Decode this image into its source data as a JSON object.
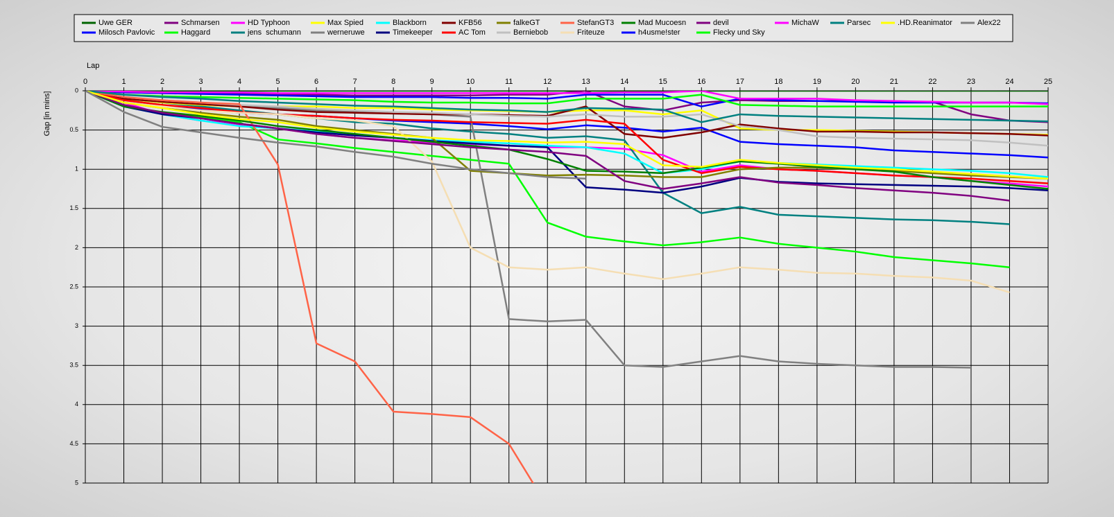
{
  "chart_data": {
    "type": "line",
    "x_label": "Lap",
    "y_label": "Gap [in mins]",
    "x": [
      0,
      1,
      2,
      3,
      4,
      5,
      6,
      7,
      8,
      9,
      10,
      11,
      12,
      13,
      14,
      15,
      16,
      17,
      18,
      19,
      20,
      21,
      22,
      23,
      24,
      25
    ],
    "xlim": [
      0,
      25
    ],
    "xticks": [
      0,
      1,
      2,
      3,
      4,
      5,
      6,
      7,
      8,
      9,
      10,
      11,
      12,
      13,
      14,
      15,
      16,
      17,
      18,
      19,
      20,
      21,
      22,
      23,
      24,
      25
    ],
    "ylim": [
      5,
      0
    ],
    "yticks": [
      0,
      0.5,
      1,
      1.5,
      2,
      2.5,
      3,
      3.5,
      4,
      4.5,
      5
    ],
    "grid": true,
    "series": [
      {
        "name": "Uwe GER",
        "color": "#006400",
        "values": [
          0,
          0,
          0,
          0,
          0,
          0,
          0,
          0,
          0,
          0,
          0,
          0,
          0,
          0,
          0,
          0,
          0,
          0,
          0,
          0,
          0,
          0,
          0,
          0,
          0,
          0
        ]
      },
      {
        "name": "Milosch Pavlovic",
        "color": "#0000ff",
        "values": [
          0,
          0.15,
          0.2,
          0.24,
          0.28,
          0.3,
          0.32,
          0.35,
          0.38,
          0.4,
          0.42,
          0.45,
          0.49,
          0.44,
          0.47,
          0.52,
          0.47,
          0.65,
          0.68,
          0.7,
          0.72,
          0.76,
          0.78,
          0.8,
          0.82,
          0.85
        ]
      },
      {
        "name": "Schmarsen",
        "color": "#800080",
        "values": [
          0,
          0.02,
          0.03,
          0.03,
          0.04,
          0.05,
          0.05,
          0.06,
          0.06,
          0.06,
          0.06,
          0.05,
          0.05,
          0,
          0.2,
          0.25,
          0.15,
          0.12,
          0.13,
          0.13,
          0.13,
          0.14,
          0.14,
          0.3,
          0.38,
          0.4
        ]
      },
      {
        "name": "Haggard",
        "color": "#00ff00",
        "values": [
          0,
          0.2,
          0.28,
          0.33,
          0.4,
          0.62,
          0.67,
          0.73,
          0.78,
          0.83,
          0.88,
          0.93,
          1.68,
          1.86,
          1.92,
          1.97,
          1.93,
          1.87,
          1.95,
          2.0,
          2.05,
          2.12,
          2.16,
          2.2,
          2.25,
          null
        ]
      },
      {
        "name": "HD Typhoon",
        "color": "#ff00ff",
        "values": [
          0,
          0.15,
          0.3,
          0.38,
          0.43,
          0.48,
          0.55,
          0.6,
          0.63,
          0.66,
          0.68,
          0.7,
          0.72,
          0.72,
          0.74,
          0.82,
          1.03,
          0.95,
          1.0,
          1.02,
          1.05,
          1.08,
          1.1,
          1.15,
          1.18,
          1.22
        ]
      },
      {
        "name": "jens  schumann",
        "color": "#008080",
        "values": [
          0,
          0.1,
          0.15,
          0.2,
          0.25,
          0.3,
          0.35,
          0.4,
          0.42,
          0.48,
          0.52,
          0.55,
          0.6,
          0.58,
          0.63,
          1.3,
          1.56,
          1.48,
          1.58,
          1.6,
          1.62,
          1.64,
          1.65,
          1.67,
          1.7,
          null
        ]
      },
      {
        "name": "Max Spied",
        "color": "#ffff00",
        "values": [
          0,
          0.1,
          0.15,
          0.18,
          0.2,
          0.2,
          0.2,
          0.22,
          0.22,
          0.24,
          0.25,
          0.26,
          0.27,
          0.25,
          0.25,
          0.3,
          0.25,
          0.48,
          0.5,
          0.5,
          0.51,
          0.52,
          0.53,
          0.54,
          0.55,
          0.56
        ]
      },
      {
        "name": "werneruwe",
        "color": "#808080",
        "values": [
          0,
          0.1,
          0.14,
          0.17,
          0.2,
          0.22,
          0.25,
          0.27,
          0.29,
          0.3,
          0.33,
          2.91,
          2.94,
          2.92,
          3.5,
          3.52,
          3.45,
          3.38,
          3.45,
          3.48,
          3.5,
          3.52,
          3.52,
          3.53,
          null,
          null
        ]
      },
      {
        "name": "Blackborn",
        "color": "#00ffff",
        "values": [
          0,
          0.2,
          0.3,
          0.38,
          0.45,
          0.48,
          0.52,
          0.56,
          0.6,
          0.63,
          0.65,
          0.67,
          0.7,
          0.72,
          0.8,
          1.05,
          1.0,
          0.9,
          0.92,
          0.94,
          0.96,
          0.98,
          1.0,
          1.02,
          1.05,
          1.1
        ]
      },
      {
        "name": "Timekeeper",
        "color": "#000080",
        "values": [
          0,
          0.2,
          0.3,
          0.35,
          0.42,
          0.48,
          0.53,
          0.57,
          0.6,
          0.64,
          0.67,
          0.7,
          0.72,
          1.23,
          1.26,
          1.3,
          1.22,
          1.11,
          1.16,
          1.18,
          1.19,
          1.2,
          1.21,
          1.22,
          1.24,
          1.27
        ]
      },
      {
        "name": "KFB56",
        "color": "#800000",
        "values": [
          0,
          0.1,
          0.14,
          0.17,
          0.2,
          0.24,
          0.27,
          0.28,
          0.29,
          0.3,
          0.3,
          0.31,
          0.32,
          0.2,
          0.55,
          0.6,
          0.53,
          0.43,
          0.48,
          0.52,
          0.52,
          0.53,
          0.53,
          0.54,
          0.55,
          0.57
        ]
      },
      {
        "name": "AC Tom",
        "color": "#ff0000",
        "values": [
          0,
          0.12,
          0.18,
          0.22,
          0.27,
          0.3,
          0.32,
          0.35,
          0.37,
          0.38,
          0.4,
          0.41,
          0.42,
          0.37,
          0.42,
          0.88,
          1.05,
          0.97,
          1.0,
          1.02,
          1.05,
          1.08,
          1.1,
          1.12,
          1.15,
          1.18
        ]
      },
      {
        "name": "falkeGT",
        "color": "#808000",
        "values": [
          0,
          0.15,
          0.22,
          0.28,
          0.33,
          0.37,
          0.45,
          0.5,
          0.55,
          0.6,
          1.02,
          1.05,
          1.08,
          1.07,
          1.08,
          1.1,
          1.1,
          1.0,
          0.98,
          0.98,
          1.0,
          1.02,
          1.05,
          1.08,
          1.1,
          1.12
        ]
      },
      {
        "name": "Berniebob",
        "color": "#c0c0c0",
        "values": [
          0,
          0.08,
          0.12,
          0.15,
          0.18,
          0.2,
          0.23,
          0.25,
          0.27,
          0.28,
          0.3,
          0.32,
          0.33,
          0.3,
          0.33,
          0.33,
          0.3,
          0.45,
          0.5,
          0.58,
          0.6,
          0.61,
          0.62,
          0.63,
          0.66,
          0.7
        ]
      },
      {
        "name": "StefanGT3",
        "color": "#ff6347",
        "values": [
          0,
          0.08,
          0.12,
          0.15,
          0.17,
          0.94,
          3.22,
          3.45,
          4.09,
          4.12,
          4.16,
          4.5,
          5.3,
          null,
          null,
          null,
          null,
          null,
          null,
          null,
          null,
          null,
          null,
          null,
          null,
          null
        ]
      },
      {
        "name": "Friteuze",
        "color": "#f5deb3",
        "values": [
          0,
          0.15,
          0.2,
          0.25,
          0.28,
          0.3,
          0.35,
          0.38,
          0.45,
          0.9,
          2.0,
          2.25,
          2.28,
          2.25,
          2.33,
          2.4,
          2.33,
          2.25,
          2.28,
          2.32,
          2.33,
          2.36,
          2.38,
          2.42,
          2.57,
          null
        ]
      },
      {
        "name": "Mad Mucoesn",
        "color": "#008000",
        "values": [
          0,
          0.2,
          0.27,
          0.32,
          0.38,
          0.45,
          0.5,
          0.55,
          0.6,
          0.65,
          0.7,
          0.75,
          0.87,
          1.02,
          1.03,
          1.05,
          0.98,
          0.9,
          0.93,
          0.97,
          1.0,
          1.03,
          1.1,
          1.15,
          1.2,
          1.25
        ]
      },
      {
        "name": "h4usme!ster",
        "color": "#0000ff",
        "values": [
          0,
          0.02,
          0.03,
          0.04,
          0.05,
          0.06,
          0.07,
          0.08,
          0.08,
          0.08,
          0.09,
          0.09,
          0.1,
          0.05,
          0.05,
          0.05,
          0.2,
          0.1,
          0.12,
          0.13,
          0.14,
          0.15,
          0.15,
          0.15,
          0.15,
          0.16
        ]
      },
      {
        "name": "devil",
        "color": "#800080",
        "values": [
          0,
          0.18,
          0.28,
          0.35,
          0.42,
          0.48,
          0.55,
          0.6,
          0.64,
          0.68,
          0.72,
          0.75,
          0.78,
          0.83,
          1.15,
          1.25,
          1.18,
          1.1,
          1.17,
          1.2,
          1.24,
          1.27,
          1.3,
          1.34,
          1.4,
          null
        ]
      },
      {
        "name": "Flecky und Sky",
        "color": "#00ff00",
        "values": [
          0,
          0.05,
          0.07,
          0.08,
          0.09,
          0.1,
          0.11,
          0.12,
          0.14,
          0.15,
          0.15,
          0.16,
          0.16,
          0.1,
          0.1,
          0.1,
          0.05,
          0.18,
          0.19,
          0.2,
          0.2,
          0.2,
          0.2,
          0.2,
          0.2,
          0.2
        ]
      },
      {
        "name": "MichaW",
        "color": "#ff00ff",
        "values": [
          0,
          0.01,
          0.02,
          0.02,
          0.02,
          0.03,
          0.03,
          0.03,
          0.03,
          0.03,
          0.03,
          0.03,
          0.03,
          0.03,
          0.02,
          0.02,
          0,
          0.1,
          0.1,
          0.1,
          0.12,
          0.13,
          0.14,
          0.15,
          0.15,
          0.17
        ]
      },
      {
        "name": "Parsec",
        "color": "#008080",
        "values": [
          0,
          0.05,
          0.08,
          0.1,
          0.13,
          0.15,
          0.17,
          0.19,
          0.2,
          0.22,
          0.24,
          0.25,
          0.27,
          0.22,
          0.23,
          0.24,
          0.4,
          0.3,
          0.32,
          0.33,
          0.34,
          0.35,
          0.36,
          0.37,
          0.38,
          0.39
        ]
      },
      {
        "name": ".HD.Reanimator",
        "color": "#ffff00",
        "values": [
          0,
          0.15,
          0.22,
          0.3,
          0.36,
          0.4,
          0.47,
          0.52,
          0.56,
          0.6,
          0.63,
          0.64,
          0.66,
          0.65,
          0.68,
          0.95,
          0.97,
          0.88,
          0.92,
          0.95,
          0.98,
          1.0,
          1.03,
          1.06,
          1.09,
          1.12
        ]
      },
      {
        "name": "Alex22",
        "color": "#808080",
        "values": [
          0,
          0.27,
          0.46,
          0.53,
          0.6,
          0.66,
          0.71,
          0.78,
          0.84,
          0.93,
          1.0,
          1.05,
          1.1,
          1.12,
          null,
          null,
          null,
          null,
          null,
          null,
          null,
          null,
          null,
          null,
          null,
          null
        ]
      }
    ]
  }
}
